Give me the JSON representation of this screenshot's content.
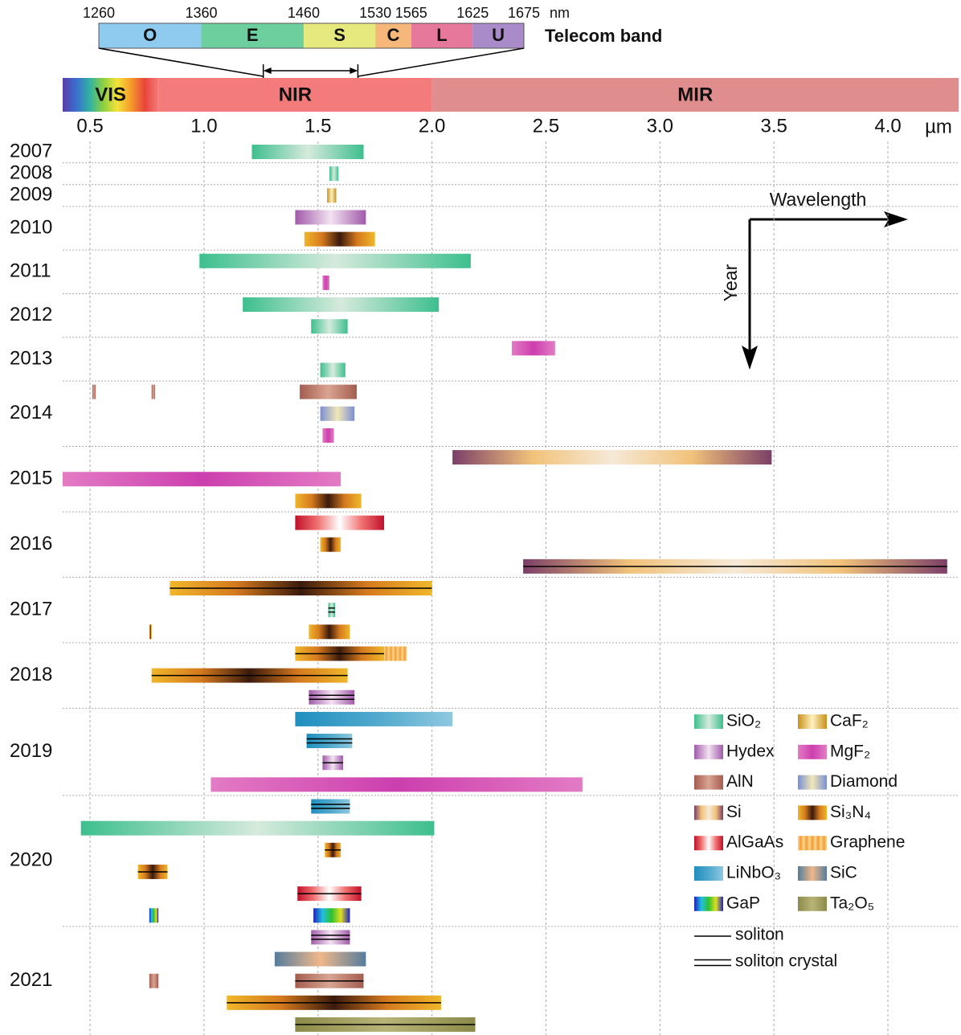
{
  "chart_data": {
    "type": "range",
    "xunit": "µm",
    "xlim": [
      0.38,
      4.31
    ],
    "xticks": [
      0.5,
      {
        "value": 1,
        "label": "1.0"
      },
      1.5,
      {
        "value": 2,
        "label": "2.0"
      },
      2.5,
      {
        "value": 3,
        "label": "3.0"
      },
      3.5,
      {
        "value": 4,
        "label": "4.0"
      }
    ],
    "grid": true,
    "spectrum": [
      {
        "name": "VIS",
        "range": [
          0.38,
          0.8
        ],
        "colors": [
          "#5b3ea8",
          "#3a6fd0",
          "#33b3a0",
          "#8fd13f",
          "#f4e23a",
          "#f59a2a",
          "#e8453a",
          "#f47b7b"
        ]
      },
      {
        "name": "NIR",
        "range": [
          0.8,
          2.0
        ],
        "colors": [
          "#f47b7b",
          "#f47b7b"
        ]
      },
      {
        "name": "MIR",
        "range": [
          2.0,
          4.31
        ],
        "colors": [
          "#e08d8e",
          "#e08d8e"
        ]
      }
    ],
    "telecom_band": {
      "label": "Telecom band",
      "unit": "nm",
      "edges": [
        1260,
        1360,
        1460,
        1530,
        1565,
        1625,
        1675
      ],
      "bands": [
        {
          "name": "O",
          "color": "#8ecbef"
        },
        {
          "name": "E",
          "color": "#6dcf9e"
        },
        {
          "name": "S",
          "color": "#e6ea7e"
        },
        {
          "name": "C",
          "color": "#f5b77a"
        },
        {
          "name": "L",
          "color": "#e6789b"
        },
        {
          "name": "U",
          "color": "#a98bc9"
        }
      ]
    },
    "axis_annotation": {
      "x": "Wavelength",
      "y": "Year"
    },
    "materials": [
      {
        "name": "SiO₂",
        "colors": [
          "#3dbf8e",
          "#d6eadc",
          "#3dbf8e"
        ]
      },
      {
        "name": "CaF₂",
        "colors": [
          "#c8901a",
          "#fff1c0",
          "#c8901a"
        ]
      },
      {
        "name": "Hydex",
        "colors": [
          "#a05aa8",
          "#f3e2f2",
          "#a05aa8"
        ]
      },
      {
        "name": "MgF₂",
        "colors": [
          "#e37bc4",
          "#cc3fae",
          "#e37bc4"
        ]
      },
      {
        "name": "AlN",
        "colors": [
          "#a45d4f",
          "#d9a493",
          "#a45d4f"
        ]
      },
      {
        "name": "Diamond",
        "colors": [
          "#7a8fd3",
          "#f1e7b6",
          "#7a8fd3"
        ]
      },
      {
        "name": "Si",
        "colors": [
          "#7b3f67",
          "#f1c27a",
          "#f6e9d8",
          "#f1c27a",
          "#7b3f67"
        ]
      },
      {
        "name": "Si₃N₄",
        "colors": [
          "#f0b72a",
          "#d57a1e",
          "#3a1a0c",
          "#d57a1e",
          "#f0b72a"
        ]
      },
      {
        "name": "AlGaAs",
        "colors": [
          "#c0112a",
          "#f07070",
          "#ffffff",
          "#f07070",
          "#c0112a"
        ]
      },
      {
        "name": "Graphene",
        "colors": [
          "#f8d98a",
          "#f59a3a",
          "#f8d98a"
        ],
        "stripes": true
      },
      {
        "name": "LiNbO₃",
        "colors": [
          "#1f8fbf",
          "#4fa8cc",
          "#8ec8df"
        ]
      },
      {
        "name": "SiC",
        "colors": [
          "#557c9c",
          "#f0b88a",
          "#557c9c"
        ]
      },
      {
        "name": "GaP",
        "colors": [
          "#2020c0",
          "#20c0e0",
          "#30c030",
          "#e0e020",
          "#2020c0"
        ]
      },
      {
        "name": "Ta₂O₅",
        "colors": [
          "#8c8a4a",
          "#b8b478",
          "#8c8a4a"
        ]
      }
    ],
    "line_legend": [
      {
        "label": "soliton",
        "lines": 1
      },
      {
        "label": "soliton crystal",
        "lines": 2
      }
    ],
    "years": [
      {
        "label": "2007",
        "rows": [
          [
            {
              "material": 0,
              "range": [
                1.21,
                1.7
              ]
            }
          ]
        ]
      },
      {
        "label": "2008",
        "rows": [
          [
            {
              "material": 0,
              "range": [
                1.55,
                1.59
              ]
            }
          ]
        ]
      },
      {
        "label": "2009",
        "rows": [
          [
            {
              "material": 1,
              "range": [
                1.54,
                1.58
              ]
            }
          ]
        ]
      },
      {
        "label": "2010",
        "rows": [
          [
            {
              "material": 2,
              "range": [
                1.4,
                1.71
              ]
            }
          ],
          [
            {
              "material": 7,
              "range": [
                1.44,
                1.75
              ]
            }
          ]
        ]
      },
      {
        "label": "2011",
        "rows": [
          [
            {
              "material": 0,
              "range": [
                0.98,
                2.17
              ]
            }
          ],
          [
            {
              "material": 3,
              "range": [
                1.52,
                1.55
              ]
            }
          ]
        ]
      },
      {
        "label": "2012",
        "rows": [
          [
            {
              "material": 0,
              "range": [
                1.17,
                2.03
              ]
            }
          ],
          [
            {
              "material": 0,
              "range": [
                1.47,
                1.63
              ]
            }
          ]
        ]
      },
      {
        "label": "2013",
        "rows": [
          [
            {
              "material": 3,
              "range": [
                2.35,
                2.54
              ]
            }
          ],
          [
            {
              "material": 0,
              "range": [
                1.51,
                1.62
              ]
            }
          ]
        ]
      },
      {
        "label": "2014",
        "rows": [
          [
            {
              "material": 4,
              "range": [
                0.51,
                0.525
              ]
            },
            {
              "material": 4,
              "range": [
                0.77,
                0.785
              ]
            },
            {
              "material": 4,
              "range": [
                1.42,
                1.67
              ]
            }
          ],
          [
            {
              "material": 5,
              "range": [
                1.51,
                1.66
              ]
            }
          ],
          [
            {
              "material": 3,
              "range": [
                1.52,
                1.57
              ]
            }
          ]
        ]
      },
      {
        "label": "2015",
        "rows": [
          [
            {
              "material": 6,
              "range": [
                2.09,
                3.49
              ]
            }
          ],
          [
            {
              "material": 3,
              "range": [
                0.38,
                1.6
              ]
            }
          ],
          [
            {
              "material": 7,
              "range": [
                1.4,
                1.69
              ]
            }
          ]
        ]
      },
      {
        "label": "2016",
        "rows": [
          [
            {
              "material": 8,
              "range": [
                1.4,
                1.79
              ]
            }
          ],
          [
            {
              "material": 7,
              "range": [
                1.51,
                1.6
              ]
            }
          ],
          [
            {
              "material": 6,
              "range": [
                2.4,
                4.26
              ],
              "lines": 1
            }
          ]
        ]
      },
      {
        "label": "2017",
        "rows": [
          [
            {
              "material": 7,
              "range": [
                0.85,
                2.0
              ],
              "lines": 1
            }
          ],
          [
            {
              "material": 0,
              "range": [
                1.545,
                1.575
              ],
              "lines": 2
            }
          ],
          [
            {
              "material": 7,
              "range": [
                0.76,
                0.77
              ]
            },
            {
              "material": 7,
              "range": [
                1.46,
                1.64
              ]
            }
          ]
        ]
      },
      {
        "label": "2018",
        "rows": [
          [
            {
              "material": 7,
              "range": [
                1.4,
                1.79
              ],
              "lines": 1
            },
            {
              "material": 9,
              "range": [
                1.79,
                1.89
              ]
            }
          ],
          [
            {
              "material": 7,
              "range": [
                0.77,
                1.63
              ],
              "lines": 1
            }
          ],
          [
            {
              "material": 2,
              "range": [
                1.46,
                1.66
              ],
              "lines": 2
            }
          ]
        ]
      },
      {
        "label": "2019",
        "rows": [
          [
            {
              "material": 10,
              "range": [
                1.4,
                2.09
              ]
            }
          ],
          [
            {
              "material": 10,
              "range": [
                1.45,
                1.65
              ],
              "lines": 2
            }
          ],
          [
            {
              "material": 2,
              "range": [
                1.52,
                1.61
              ],
              "lines": 1
            }
          ],
          [
            {
              "material": 3,
              "range": [
                1.03,
                2.66
              ]
            }
          ]
        ]
      },
      {
        "label": "2020",
        "rows": [
          [
            {
              "material": 10,
              "range": [
                1.47,
                1.64
              ],
              "lines": 2
            }
          ],
          [
            {
              "material": 0,
              "range": [
                0.46,
                2.01
              ]
            }
          ],
          [
            {
              "material": 7,
              "range": [
                1.53,
                1.6
              ],
              "lines": 1
            }
          ],
          [
            {
              "material": 7,
              "range": [
                0.71,
                0.84
              ],
              "lines": 1
            }
          ],
          [
            {
              "material": 8,
              "range": [
                1.41,
                1.69
              ],
              "lines": 1
            }
          ],
          [
            {
              "material": 12,
              "range": [
                0.76,
                0.8
              ]
            },
            {
              "material": 12,
              "range": [
                1.48,
                1.64
              ]
            }
          ]
        ]
      },
      {
        "label": "2021",
        "rows": [
          [
            {
              "material": 2,
              "range": [
                1.47,
                1.64
              ],
              "lines": 2
            }
          ],
          [
            {
              "material": 11,
              "range": [
                1.31,
                1.71
              ]
            }
          ],
          [
            {
              "material": 4,
              "range": [
                0.76,
                0.8
              ]
            },
            {
              "material": 4,
              "range": [
                1.4,
                1.7
              ],
              "lines": 1
            }
          ],
          [
            {
              "material": 7,
              "range": [
                1.1,
                2.04
              ],
              "lines": 1
            }
          ],
          [
            {
              "material": 13,
              "range": [
                1.4,
                2.19
              ],
              "lines": 1
            }
          ]
        ]
      }
    ]
  }
}
